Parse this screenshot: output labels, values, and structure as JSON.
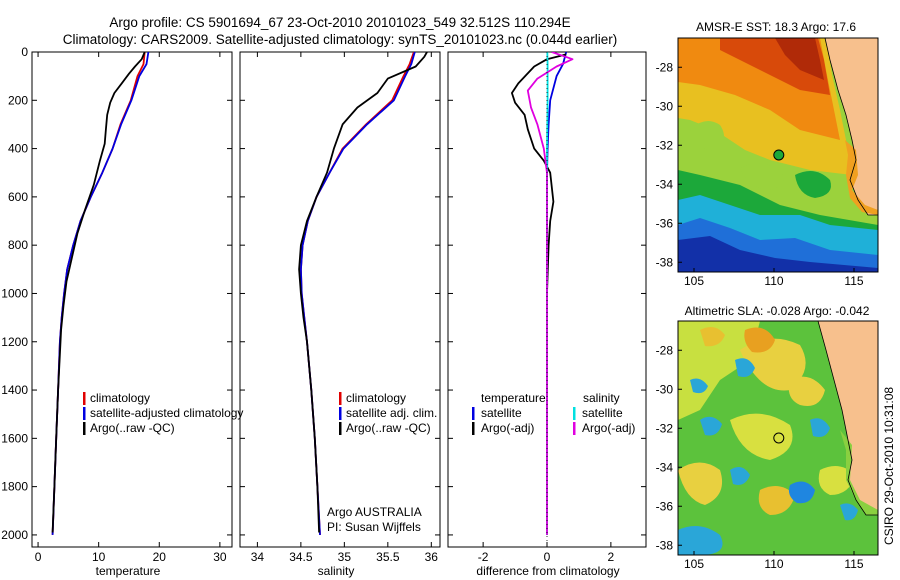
{
  "header": {
    "line1": "Argo profile: CS 5901694_67 23-Oct-2010 20101023_549 32.512S 110.294E",
    "line2": "Climatology: CARS2009. Satellite-adjusted climatology: synTS_20101023.nc (0.044d earlier)"
  },
  "side_label": "CSIRO 29-Oct-2010 10:31:08",
  "colors": {
    "climatology": "#e00000",
    "satellite": "#0000e0",
    "argo": "#000000",
    "salinity_sat": "#00e0e0",
    "salinity_argo": "#e000e0"
  },
  "chart_data": [
    {
      "type": "line",
      "id": "temperature",
      "xlabel": "temperature",
      "ylabel": "",
      "xlim": [
        -1,
        32
      ],
      "ylim": [
        2050,
        0
      ],
      "xticks": [
        0,
        10,
        20,
        30
      ],
      "yticks": [
        0,
        200,
        400,
        600,
        800,
        1000,
        1200,
        1400,
        1600,
        1800,
        2000
      ],
      "legend": [
        "climatology",
        "satellite-adjusted climatology",
        "Argo(..raw -QC)"
      ],
      "series": [
        {
          "name": "climatology",
          "color": "#e00000",
          "points": [
            [
              17.6,
              0
            ],
            [
              17.4,
              50
            ],
            [
              16.4,
              100
            ],
            [
              15.3,
              200
            ],
            [
              13.6,
              300
            ],
            [
              12.3,
              400
            ],
            [
              10.6,
              500
            ],
            [
              8.7,
              600
            ],
            [
              7.0,
              700
            ],
            [
              5.8,
              800
            ],
            [
              4.8,
              900
            ],
            [
              4.3,
              1000
            ],
            [
              3.9,
              1100
            ],
            [
              3.6,
              1200
            ],
            [
              3.3,
              1400
            ],
            [
              3.0,
              1600
            ],
            [
              2.7,
              1800
            ],
            [
              2.4,
              2000
            ]
          ]
        },
        {
          "name": "satellite",
          "color": "#0000e0",
          "points": [
            [
              18.2,
              0
            ],
            [
              17.9,
              50
            ],
            [
              16.7,
              100
            ],
            [
              15.4,
              200
            ],
            [
              13.7,
              300
            ],
            [
              12.3,
              400
            ],
            [
              10.6,
              500
            ],
            [
              8.7,
              600
            ],
            [
              7.0,
              700
            ],
            [
              5.8,
              800
            ],
            [
              4.8,
              900
            ],
            [
              4.3,
              1000
            ],
            [
              3.9,
              1100
            ],
            [
              3.6,
              1200
            ],
            [
              3.3,
              1400
            ],
            [
              3.0,
              1600
            ],
            [
              2.7,
              1800
            ],
            [
              2.4,
              2000
            ]
          ]
        },
        {
          "name": "argo",
          "color": "#000000",
          "points": [
            [
              17.6,
              0
            ],
            [
              17.1,
              30
            ],
            [
              16.0,
              60
            ],
            [
              15.0,
              90
            ],
            [
              13.8,
              130
            ],
            [
              12.6,
              170
            ],
            [
              11.9,
              210
            ],
            [
              11.4,
              260
            ],
            [
              11.2,
              320
            ],
            [
              11.0,
              380
            ],
            [
              10.2,
              450
            ],
            [
              9.2,
              550
            ],
            [
              7.8,
              650
            ],
            [
              6.5,
              750
            ],
            [
              5.6,
              850
            ],
            [
              4.7,
              950
            ],
            [
              4.2,
              1050
            ],
            [
              3.8,
              1150
            ],
            [
              3.3,
              1400
            ],
            [
              3.0,
              1600
            ],
            [
              2.7,
              1800
            ],
            [
              2.4,
              1990
            ]
          ]
        }
      ],
      "annotations": []
    },
    {
      "type": "line",
      "id": "salinity",
      "xlabel": "salinity",
      "ylabel": "",
      "xlim": [
        33.8,
        36.1
      ],
      "ylim": [
        2050,
        0
      ],
      "xticks": [
        34,
        34.5,
        35,
        35.5,
        36
      ],
      "legend": [
        "climatology",
        "satellite adj. clim.",
        "Argo(..raw -QC)"
      ],
      "series": [
        {
          "name": "climatology",
          "color": "#e00000",
          "points": [
            [
              35.8,
              0
            ],
            [
              35.75,
              50
            ],
            [
              35.68,
              100
            ],
            [
              35.55,
              200
            ],
            [
              35.25,
              300
            ],
            [
              34.98,
              400
            ],
            [
              34.83,
              500
            ],
            [
              34.68,
              600
            ],
            [
              34.58,
              700
            ],
            [
              34.52,
              800
            ],
            [
              34.5,
              900
            ],
            [
              34.51,
              1000
            ],
            [
              34.54,
              1100
            ],
            [
              34.57,
              1200
            ],
            [
              34.62,
              1400
            ],
            [
              34.66,
              1600
            ],
            [
              34.69,
              1800
            ],
            [
              34.72,
              2000
            ]
          ]
        },
        {
          "name": "satellite",
          "color": "#0000e0",
          "points": [
            [
              35.81,
              0
            ],
            [
              35.77,
              50
            ],
            [
              35.7,
              100
            ],
            [
              35.57,
              200
            ],
            [
              35.26,
              300
            ],
            [
              34.99,
              400
            ],
            [
              34.83,
              500
            ],
            [
              34.68,
              600
            ],
            [
              34.58,
              700
            ],
            [
              34.52,
              800
            ],
            [
              34.5,
              900
            ],
            [
              34.51,
              1000
            ],
            [
              34.54,
              1100
            ],
            [
              34.57,
              1200
            ],
            [
              34.62,
              1400
            ],
            [
              34.66,
              1600
            ],
            [
              34.69,
              1800
            ],
            [
              34.72,
              2000
            ]
          ]
        },
        {
          "name": "argo",
          "color": "#000000",
          "points": [
            [
              35.95,
              0
            ],
            [
              35.92,
              20
            ],
            [
              35.82,
              60
            ],
            [
              35.5,
              110
            ],
            [
              35.38,
              170
            ],
            [
              35.15,
              230
            ],
            [
              34.98,
              300
            ],
            [
              34.88,
              400
            ],
            [
              34.8,
              500
            ],
            [
              34.68,
              600
            ],
            [
              34.57,
              700
            ],
            [
              34.5,
              800
            ],
            [
              34.48,
              900
            ],
            [
              34.5,
              1000
            ],
            [
              34.53,
              1100
            ],
            [
              34.57,
              1200
            ],
            [
              34.62,
              1400
            ],
            [
              34.66,
              1600
            ],
            [
              34.69,
              1800
            ],
            [
              34.71,
              1990
            ]
          ]
        }
      ],
      "annotations": [
        "Argo AUSTRALIA",
        "PI: Susan Wijffels"
      ]
    },
    {
      "type": "line",
      "id": "difference",
      "xlabel": "difference from climatology",
      "ylabel": "",
      "xlim": [
        -3.1,
        3.1
      ],
      "ylim": [
        2050,
        0
      ],
      "xticks": [
        -2,
        0,
        2
      ],
      "legend_temperature": {
        "title": "temperature",
        "items": [
          "satellite",
          "Argo(-adj)"
        ]
      },
      "legend_salinity": {
        "title": "salinity",
        "items": [
          "satellite",
          "Argo(-adj)"
        ]
      },
      "series": [
        {
          "name": "temperature satellite",
          "color": "#0000e0",
          "points": [
            [
              0.6,
              0
            ],
            [
              0.5,
              50
            ],
            [
              0.3,
              100
            ],
            [
              0.1,
              200
            ],
            [
              0.05,
              300
            ],
            [
              0.02,
              400
            ],
            [
              0,
              500
            ],
            [
              0,
              2000
            ]
          ]
        },
        {
          "name": "temperature Argo(-adj)",
          "color": "#000000",
          "points": [
            [
              0.6,
              10
            ],
            [
              0,
              30
            ],
            [
              -0.4,
              60
            ],
            [
              -0.9,
              130
            ],
            [
              -1.1,
              170
            ],
            [
              -1.0,
              210
            ],
            [
              -0.7,
              260
            ],
            [
              -0.6,
              320
            ],
            [
              -0.4,
              400
            ],
            [
              -0.1,
              450
            ],
            [
              0.1,
              500
            ],
            [
              0.2,
              620
            ],
            [
              0.1,
              700
            ],
            [
              0.05,
              800
            ],
            [
              0,
              1000
            ],
            [
              0,
              2000
            ]
          ]
        },
        {
          "name": "salinity satellite",
          "color": "#00e0e0",
          "points": [
            [
              0.01,
              0
            ],
            [
              0.02,
              50
            ],
            [
              0.02,
              100
            ],
            [
              0.02,
              200
            ],
            [
              0.01,
              300
            ],
            [
              0,
              400
            ],
            [
              0,
              2000
            ]
          ]
        },
        {
          "name": "salinity Argo(-adj)",
          "color": "#e000e0",
          "points": [
            [
              0.15,
              0
            ],
            [
              0.8,
              30
            ],
            [
              0.3,
              60
            ],
            [
              -0.3,
              110
            ],
            [
              -0.6,
              160
            ],
            [
              -0.5,
              230
            ],
            [
              -0.3,
              300
            ],
            [
              -0.1,
              400
            ],
            [
              0,
              500
            ],
            [
              0,
              2000
            ]
          ]
        }
      ],
      "annotations": []
    },
    {
      "type": "heatmap",
      "id": "sst_map",
      "title": "AMSR-E SST: 18.3 Argo: 17.6",
      "xlim": [
        104,
        116.5
      ],
      "ylim": [
        -38.5,
        -26.5
      ],
      "xticks": [
        105,
        110,
        115
      ],
      "yticks": [
        -28,
        -30,
        -32,
        -34,
        -36,
        -38
      ],
      "argo_position": [
        110.3,
        -32.5
      ]
    },
    {
      "type": "heatmap",
      "id": "sla_map",
      "title": "Altimetric SLA: -0.028 Argo: -0.042",
      "xlim": [
        104,
        116.5
      ],
      "ylim": [
        -38.5,
        -26.5
      ],
      "xticks": [
        105,
        110,
        115
      ],
      "yticks": [
        -28,
        -30,
        -32,
        -34,
        -36,
        -38
      ],
      "argo_position": [
        110.3,
        -32.5
      ]
    }
  ]
}
